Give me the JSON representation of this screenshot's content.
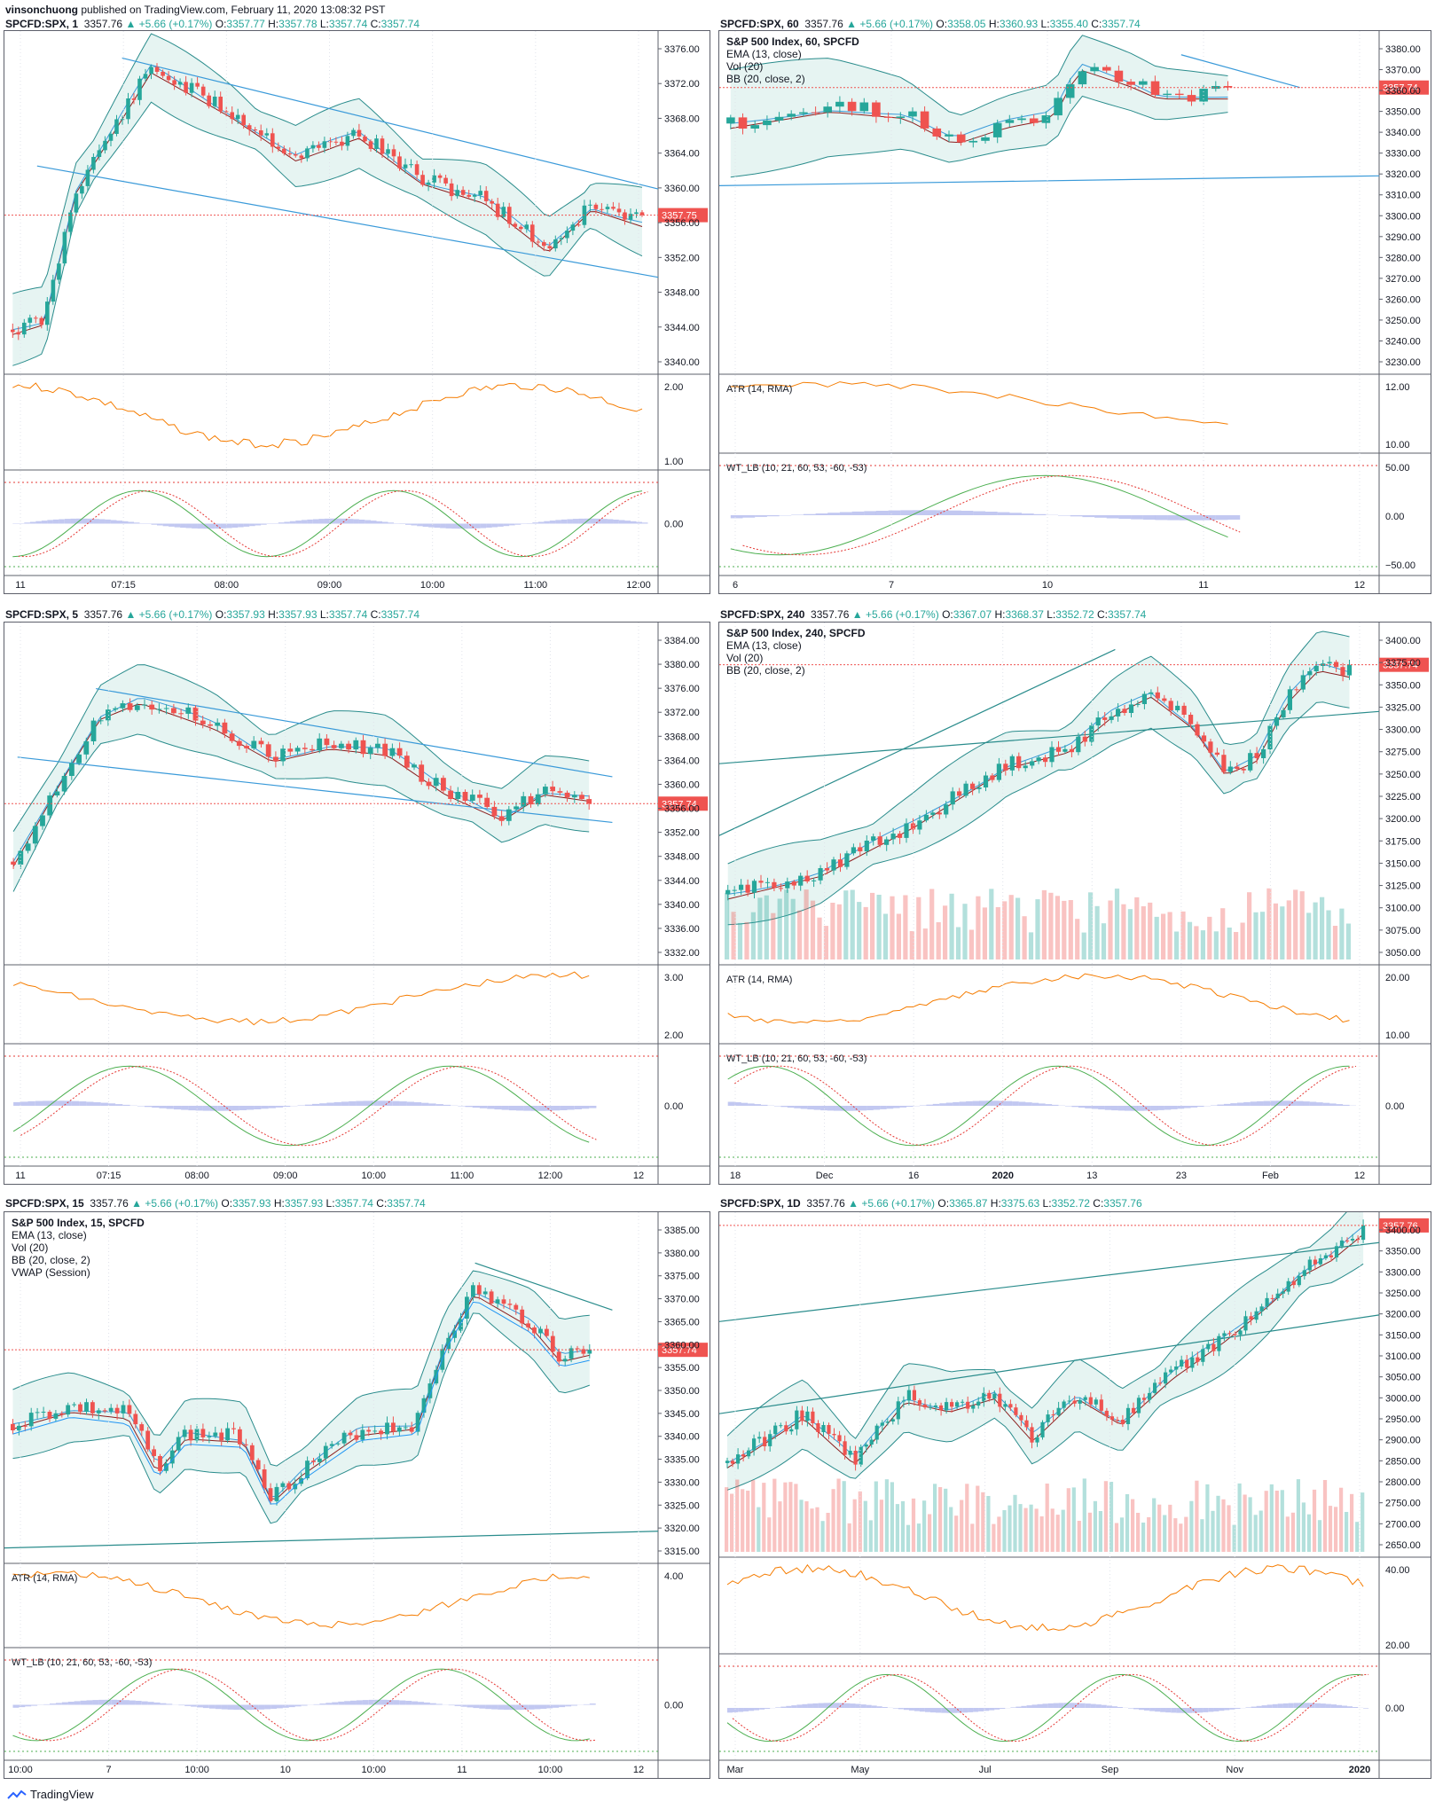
{
  "header": {
    "author": "vinsonchuong",
    "text": " published on TradingView.com, February 11, 2020 13:08:32 PST"
  },
  "footer": {
    "brand": "TradingView"
  },
  "colors": {
    "up": "#26a69a",
    "down": "#ef5350",
    "ema": "#8b1e1e",
    "bb": "#2a8c8c",
    "trend": "#3a9ad9",
    "atr": "#f57c00",
    "wt_fast": "#4caf50",
    "wt_slow": "#e53935",
    "wt_hist": "#9aa4e8",
    "price_line": "#ef5350"
  },
  "chart_data": [
    {
      "id": "p1m",
      "type": "candlestick",
      "title": {
        "sym": "SPCFD:SPX, 1",
        "last": "3357.76",
        "chg": "+5.66 (+0.17%)",
        "o": "3357.77",
        "h": "3357.78",
        "l": "3357.74",
        "c": "3357.74"
      },
      "legend": [],
      "y_ticks": [
        "3376.00",
        "3372.00",
        "3368.00",
        "3364.00",
        "3360.00",
        "3356.00",
        "3352.00",
        "3348.00",
        "3344.00",
        "3340.00"
      ],
      "price_tag": "3357.75",
      "x_ticks": [
        "11",
        "07:15",
        "08:00",
        "09:00",
        "10:00",
        "11:00",
        "12:00"
      ],
      "atr_ticks": [
        "2.00",
        "1.00"
      ],
      "wt_ticks": [
        "0.00"
      ],
      "atr_label": "",
      "wt_label": ""
    },
    {
      "id": "p60",
      "type": "candlestick",
      "title": {
        "sym": "SPCFD:SPX, 60",
        "last": "3357.76",
        "chg": "+5.66 (+0.17%)",
        "o": "3358.05",
        "h": "3360.93",
        "l": "3355.40",
        "c": "3357.74"
      },
      "legend": [
        "S&P 500 Index, 60, SPCFD",
        "EMA (13, close)",
        "Vol (20)",
        "BB (20, close, 2)"
      ],
      "y_ticks": [
        "3380.00",
        "3370.00",
        "3360.00",
        "3350.00",
        "3340.00",
        "3330.00",
        "3320.00",
        "3310.00",
        "3300.00",
        "3290.00",
        "3280.00",
        "3270.00",
        "3260.00",
        "3250.00",
        "3240.00",
        "3230.00"
      ],
      "price_tag": "3357.74",
      "x_ticks": [
        "6",
        "7",
        "10",
        "11",
        "12"
      ],
      "atr_ticks": [
        "12.00",
        "10.00"
      ],
      "wt_ticks": [
        "50.00",
        "0.00",
        "−50.00"
      ],
      "atr_label": "ATR (14, RMA)",
      "wt_label": "WT_LB (10, 21, 60, 53, -60, -53)"
    },
    {
      "id": "p5",
      "type": "candlestick",
      "title": {
        "sym": "SPCFD:SPX, 5",
        "last": "3357.76",
        "chg": "+5.66 (+0.17%)",
        "o": "3357.93",
        "h": "3357.93",
        "l": "3357.74",
        "c": "3357.74"
      },
      "legend": [],
      "y_ticks": [
        "3384.00",
        "3380.00",
        "3376.00",
        "3372.00",
        "3368.00",
        "3364.00",
        "3360.00",
        "3356.00",
        "3352.00",
        "3348.00",
        "3344.00",
        "3340.00",
        "3336.00",
        "3332.00"
      ],
      "price_tag": "3357.74",
      "x_ticks": [
        "11",
        "07:15",
        "08:00",
        "09:00",
        "10:00",
        "11:00",
        "12:00",
        "12"
      ],
      "atr_ticks": [
        "3.00",
        "2.00"
      ],
      "wt_ticks": [
        "0.00"
      ],
      "atr_label": "",
      "wt_label": ""
    },
    {
      "id": "p240",
      "type": "candlestick",
      "title": {
        "sym": "SPCFD:SPX, 240",
        "last": "3357.76",
        "chg": "+5.66 (+0.17%)",
        "o": "3367.07",
        "h": "3368.37",
        "l": "3352.72",
        "c": "3357.74"
      },
      "legend": [
        "S&P 500 Index, 240, SPCFD",
        "EMA (13, close)",
        "Vol (20)",
        "BB (20, close, 2)"
      ],
      "y_ticks": [
        "3400.00",
        "3375.00",
        "3350.00",
        "3325.00",
        "3300.00",
        "3275.00",
        "3250.00",
        "3225.00",
        "3200.00",
        "3175.00",
        "3150.00",
        "3125.00",
        "3100.00",
        "3075.00",
        "3050.00"
      ],
      "price_tag": "3357.74",
      "x_ticks": [
        "18",
        "Dec",
        "16",
        "2020",
        "13",
        "23",
        "Feb",
        "12"
      ],
      "atr_ticks": [
        "20.00",
        "10.00"
      ],
      "wt_ticks": [
        "0.00"
      ],
      "atr_label": "ATR (14, RMA)",
      "wt_label": "WT_LB (10, 21, 60, 53, -60, -53)"
    },
    {
      "id": "p15",
      "type": "candlestick",
      "title": {
        "sym": "SPCFD:SPX, 15",
        "last": "3357.76",
        "chg": "+5.66 (+0.17%)",
        "o": "3357.93",
        "h": "3357.93",
        "l": "3357.74",
        "c": "3357.74"
      },
      "legend": [
        "S&P 500 Index, 15, SPCFD",
        "EMA (13, close)",
        "Vol (20)",
        "BB (20, close, 2)",
        "VWAP (Session)"
      ],
      "y_ticks": [
        "3385.00",
        "3380.00",
        "3375.00",
        "3370.00",
        "3365.00",
        "3360.00",
        "3355.00",
        "3350.00",
        "3345.00",
        "3340.00",
        "3335.00",
        "3330.00",
        "3325.00",
        "3320.00",
        "3315.00"
      ],
      "price_tag": "3357.74",
      "x_ticks": [
        "10:00",
        "7",
        "10:00",
        "10",
        "10:00",
        "11",
        "10:00",
        "12"
      ],
      "atr_ticks": [
        "4.00"
      ],
      "wt_ticks": [
        "0.00"
      ],
      "atr_label": "ATR (14, RMA)",
      "wt_label": "WT_LB (10, 21, 60, 53, -60, -53)"
    },
    {
      "id": "p1d",
      "type": "candlestick",
      "title": {
        "sym": "SPCFD:SPX, 1D",
        "last": "3357.76",
        "chg": "+5.66 (+0.17%)",
        "o": "3365.87",
        "h": "3375.63",
        "l": "3352.72",
        "c": "3357.76"
      },
      "legend": [],
      "y_ticks": [
        "3400.00",
        "3350.00",
        "3300.00",
        "3250.00",
        "3200.00",
        "3150.00",
        "3100.00",
        "3050.00",
        "3000.00",
        "2950.00",
        "2900.00",
        "2850.00",
        "2800.00",
        "2750.00",
        "2700.00",
        "2650.00"
      ],
      "price_tag": "3357.76",
      "x_ticks": [
        "Mar",
        "May",
        "Jul",
        "Sep",
        "Nov",
        "2020"
      ],
      "atr_ticks": [
        "40.00",
        "20.00"
      ],
      "wt_ticks": [
        "0.00"
      ],
      "atr_label": "",
      "wt_label": ""
    }
  ]
}
